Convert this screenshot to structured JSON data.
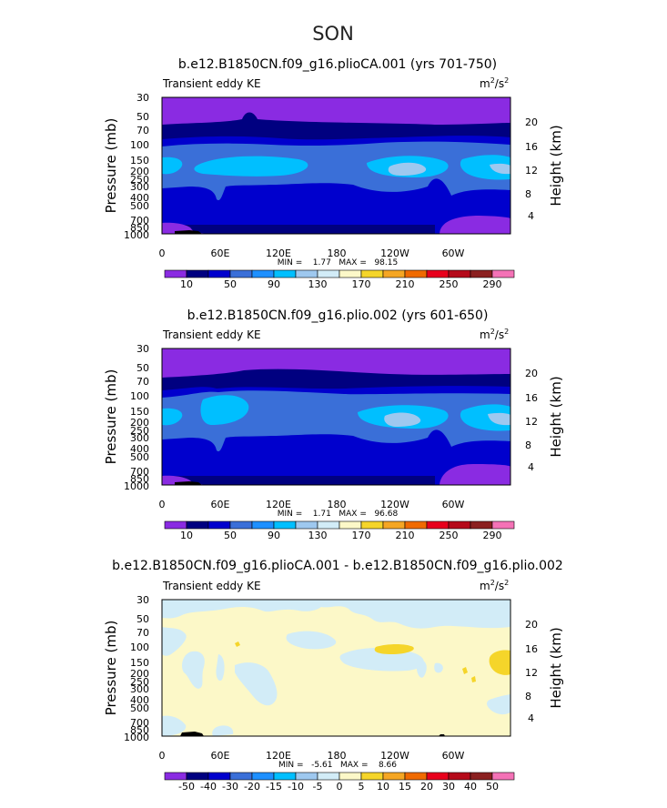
{
  "page_title": "SON",
  "colors": {
    "c_purple": "#8a2be2",
    "c_navy": "#000080",
    "c_blue": "#0000cd",
    "c_roy": "#3a6fd8",
    "c_cyan": "#00bfff",
    "c_lblue": "#9ec8ef",
    "c_pale": "#d2ecf7",
    "c_cream": "#fcf8c8",
    "c_yellow": "#f5d52a",
    "c_black": "#000000",
    "cb10": [
      "#8a2be2",
      "#000080",
      "#0000cd",
      "#3a6fd8",
      "#1e90ff",
      "#00bfff",
      "#9ec8ef",
      "#d2ecf7",
      "#fcf8c8",
      "#f5d52a",
      "#f5a623",
      "#f06a00",
      "#e8001c",
      "#b50a1a",
      "#8b2020",
      "#f472b6"
    ],
    "cbdiff": [
      "#8a2be2",
      "#000080",
      "#0000cd",
      "#3a6fd8",
      "#1e90ff",
      "#00bfff",
      "#9ec8ef",
      "#d2ecf7",
      "#fcf8c8",
      "#f5d52a",
      "#f5a623",
      "#f06a00",
      "#e8001c",
      "#b50a1a",
      "#8b2020",
      "#f472b6"
    ]
  },
  "axes_common": {
    "ylabel_left": "Pressure (mb)",
    "ylabel_right": "Height (km)",
    "left_note": "Transient eddy KE",
    "right_units": "m²/s²",
    "pressure_ticks": [
      "30",
      "50",
      "70",
      "100",
      "150",
      "200",
      "250",
      "300",
      "400",
      "500",
      "700",
      "850",
      "1000"
    ],
    "height_ticks": [
      "20",
      "16",
      "12",
      "8",
      "4"
    ],
    "lon_ticks": [
      "0",
      "60E",
      "120E",
      "180",
      "120W",
      "60W"
    ]
  },
  "chart_data": [
    {
      "type": "contour",
      "title": "b.e12.B1850CN.f09_g16.plioCA.001 (yrs 701-750)",
      "stats": "MIN =    1.77   MAX =   98.15",
      "colorbar_labels": [
        "10",
        "50",
        "90",
        "130",
        "170",
        "210",
        "250",
        "290"
      ],
      "ylim_mb": [
        1000,
        30
      ],
      "xlim": [
        "0",
        "360"
      ]
    },
    {
      "type": "contour",
      "title": "b.e12.B1850CN.f09_g16.plio.002 (yrs 601-650)",
      "stats": "MIN =    1.71   MAX =   96.68",
      "colorbar_labels": [
        "10",
        "50",
        "90",
        "130",
        "170",
        "210",
        "250",
        "290"
      ],
      "ylim_mb": [
        1000,
        30
      ],
      "xlim": [
        "0",
        "360"
      ]
    },
    {
      "type": "contour",
      "title": "b.e12.B1850CN.f09_g16.plioCA.001 - b.e12.B1850CN.f09_g16.plio.002",
      "stats": "MIN =   -5.61   MAX =    8.66",
      "colorbar_labels": [
        "-50",
        "-40",
        "-30",
        "-20",
        "-15",
        "-10",
        "-5",
        "0",
        "5",
        "10",
        "15",
        "20",
        "30",
        "40",
        "50"
      ],
      "ylim_mb": [
        1000,
        30
      ],
      "xlim": [
        "0",
        "360"
      ]
    }
  ]
}
